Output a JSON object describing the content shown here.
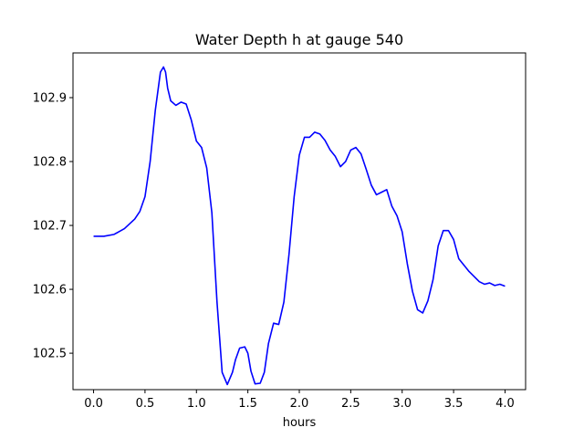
{
  "chart_data": {
    "type": "line",
    "title": "Water Depth h at gauge 540",
    "xlabel": "hours",
    "ylabel": "",
    "xlim": [
      -0.2,
      4.2
    ],
    "ylim": [
      102.443,
      102.97
    ],
    "xticks": [
      0.0,
      0.5,
      1.0,
      1.5,
      2.0,
      2.5,
      3.0,
      3.5,
      4.0
    ],
    "xtick_labels": [
      "0.0",
      "0.5",
      "1.0",
      "1.5",
      "2.0",
      "2.5",
      "3.0",
      "3.5",
      "4.0"
    ],
    "yticks": [
      102.5,
      102.6,
      102.7,
      102.8,
      102.9
    ],
    "ytick_labels": [
      "102.5",
      "102.6",
      "102.7",
      "102.8",
      "102.9"
    ],
    "grid": false,
    "legend": "none",
    "series": [
      {
        "color": "#0000ff",
        "x": [
          0.0,
          0.1,
          0.2,
          0.3,
          0.4,
          0.45,
          0.5,
          0.55,
          0.6,
          0.65,
          0.68,
          0.7,
          0.72,
          0.75,
          0.8,
          0.85,
          0.9,
          0.95,
          1.0,
          1.05,
          1.1,
          1.15,
          1.2,
          1.25,
          1.3,
          1.35,
          1.38,
          1.42,
          1.47,
          1.5,
          1.53,
          1.57,
          1.62,
          1.66,
          1.7,
          1.75,
          1.8,
          1.85,
          1.9,
          1.95,
          2.0,
          2.05,
          2.1,
          2.15,
          2.2,
          2.25,
          2.3,
          2.35,
          2.4,
          2.45,
          2.5,
          2.55,
          2.6,
          2.65,
          2.7,
          2.75,
          2.8,
          2.85,
          2.9,
          2.95,
          3.0,
          3.05,
          3.1,
          3.15,
          3.2,
          3.25,
          3.3,
          3.35,
          3.4,
          3.45,
          3.5,
          3.55,
          3.6,
          3.65,
          3.7,
          3.75,
          3.8,
          3.85,
          3.9,
          3.95,
          4.0
        ],
        "y": [
          102.683,
          102.683,
          102.686,
          102.695,
          102.71,
          102.722,
          102.745,
          102.8,
          102.88,
          102.94,
          102.948,
          102.94,
          102.915,
          102.895,
          102.888,
          102.893,
          102.89,
          102.865,
          102.832,
          102.822,
          102.79,
          102.72,
          102.58,
          102.47,
          102.451,
          102.47,
          102.49,
          102.508,
          102.51,
          102.5,
          102.472,
          102.452,
          102.453,
          102.47,
          102.515,
          102.547,
          102.545,
          102.58,
          102.655,
          102.745,
          102.81,
          102.838,
          102.838,
          102.846,
          102.843,
          102.833,
          102.818,
          102.808,
          102.792,
          102.8,
          102.818,
          102.822,
          102.812,
          102.788,
          102.763,
          102.748,
          102.752,
          102.756,
          102.73,
          102.715,
          102.69,
          102.64,
          102.597,
          102.568,
          102.563,
          102.582,
          102.615,
          102.668,
          102.692,
          102.692,
          102.678,
          102.648,
          102.638,
          102.628,
          102.62,
          102.612,
          102.608,
          102.61,
          102.606,
          102.608,
          102.605
        ]
      }
    ]
  }
}
